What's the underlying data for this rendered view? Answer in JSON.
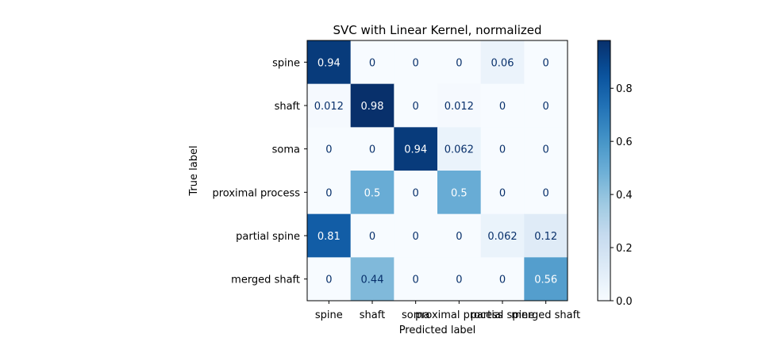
{
  "chart_data": {
    "type": "heatmap",
    "title": "SVC with Linear Kernel, normalized",
    "xlabel": "Predicted label",
    "ylabel": "True label",
    "x_categories": [
      "spine",
      "shaft",
      "soma",
      "proximal process",
      "partial spine",
      "merged shaft"
    ],
    "y_categories": [
      "spine",
      "shaft",
      "soma",
      "proximal process",
      "partial spine",
      "merged shaft"
    ],
    "values": [
      [
        0.94,
        0,
        0,
        0,
        0.06,
        0
      ],
      [
        0.012,
        0.98,
        0,
        0.012,
        0,
        0
      ],
      [
        0,
        0,
        0.94,
        0.062,
        0,
        0
      ],
      [
        0,
        0.5,
        0,
        0.5,
        0,
        0
      ],
      [
        0.81,
        0,
        0,
        0,
        0.062,
        0.12
      ],
      [
        0,
        0.44,
        0,
        0,
        0,
        0.56
      ]
    ],
    "value_labels": [
      [
        "0.94",
        "0",
        "0",
        "0",
        "0.06",
        "0"
      ],
      [
        "0.012",
        "0.98",
        "0",
        "0.012",
        "0",
        "0"
      ],
      [
        "0",
        "0",
        "0.94",
        "0.062",
        "0",
        "0"
      ],
      [
        "0",
        "0.5",
        "0",
        "0.5",
        "0",
        "0"
      ],
      [
        "0.81",
        "0",
        "0",
        "0",
        "0.062",
        "0.12"
      ],
      [
        "0",
        "0.44",
        "0",
        "0",
        "0",
        "0.56"
      ]
    ],
    "colormap": "Blues",
    "colorbar": {
      "range": [
        0,
        0.98
      ],
      "ticks": [
        0.0,
        0.2,
        0.4,
        0.6,
        0.8
      ],
      "tick_labels": [
        "0.0",
        "0.2",
        "0.4",
        "0.6",
        "0.8"
      ]
    },
    "grid": false
  }
}
